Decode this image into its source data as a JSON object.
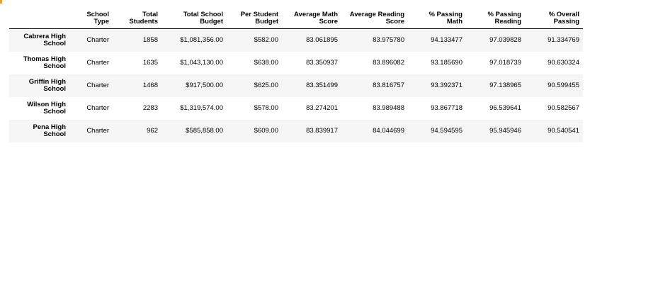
{
  "table": {
    "columns": [
      "",
      "School Type",
      "Total Students",
      "Total School Budget",
      "Per Student Budget",
      "Average Math Score",
      "Average Reading Score",
      "% Passing Math",
      "% Passing Reading",
      "% Overall Passing"
    ],
    "rows": [
      {
        "school": "Cabrera High School",
        "type": "Charter",
        "students": "1858",
        "budget": "$1,081,356.00",
        "per_student": "$582.00",
        "avg_math": "83.061895",
        "avg_reading": "83.975780",
        "pct_math": "94.133477",
        "pct_reading": "97.039828",
        "pct_overall": "91.334769"
      },
      {
        "school": "Thomas High School",
        "type": "Charter",
        "students": "1635",
        "budget": "$1,043,130.00",
        "per_student": "$638.00",
        "avg_math": "83.350937",
        "avg_reading": "83.896082",
        "pct_math": "93.185690",
        "pct_reading": "97.018739",
        "pct_overall": "90.630324"
      },
      {
        "school": "Griffin High School",
        "type": "Charter",
        "students": "1468",
        "budget": "$917,500.00",
        "per_student": "$625.00",
        "avg_math": "83.351499",
        "avg_reading": "83.816757",
        "pct_math": "93.392371",
        "pct_reading": "97.138965",
        "pct_overall": "90.599455"
      },
      {
        "school": "Wilson High School",
        "type": "Charter",
        "students": "2283",
        "budget": "$1,319,574.00",
        "per_student": "$578.00",
        "avg_math": "83.274201",
        "avg_reading": "83.989488",
        "pct_math": "93.867718",
        "pct_reading": "96.539641",
        "pct_overall": "90.582567"
      },
      {
        "school": "Pena High School",
        "type": "Charter",
        "students": "962",
        "budget": "$585,858.00",
        "per_student": "$609.00",
        "avg_math": "83.839917",
        "avg_reading": "84.044699",
        "pct_math": "94.594595",
        "pct_reading": "95.945946",
        "pct_overall": "90.540541"
      }
    ]
  },
  "colors": {
    "row_stripe": "#f5f5f5",
    "header_rule": "#000000",
    "corner_mark": "#e8a23a"
  }
}
